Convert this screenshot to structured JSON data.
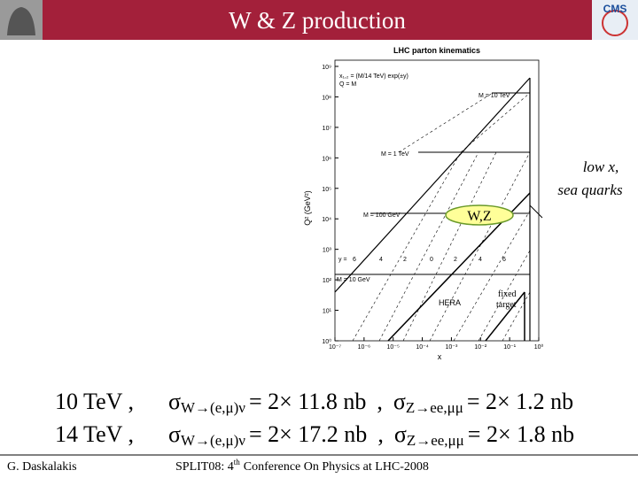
{
  "header": {
    "title": "W & Z production",
    "logo": "CMS"
  },
  "figure": {
    "title": "LHC parton kinematics",
    "x_label": "x",
    "y_label": "Q² (GeV²)",
    "x_ticks": [
      "10⁻⁷",
      "10⁻⁶",
      "10⁻⁵",
      "10⁻⁴",
      "10⁻³",
      "10⁻²",
      "10⁻¹",
      "10⁰"
    ],
    "y_ticks": [
      "10⁰",
      "10¹",
      "10²",
      "10³",
      "10⁴",
      "10⁵",
      "10⁶",
      "10⁷",
      "10⁸",
      "10⁹"
    ],
    "legend": [
      "x₁,₂ = (M/14 TeV) exp(±y)",
      "Q = M"
    ],
    "mass_labels": [
      "M = 10 TeV",
      "M = 1 TeV",
      "M = 100 GeV",
      "M = 10 GeV"
    ],
    "rapidity_labels": [
      "y =",
      "6",
      "4",
      "2",
      "0",
      "2",
      "4",
      "6"
    ],
    "regions": {
      "hera": "HERA",
      "fixed_target": [
        "fixed",
        "target"
      ]
    },
    "highlight": "W,Z"
  },
  "callout": [
    "low x,",
    "sea quarks"
  ],
  "cross_sections": [
    {
      "energy": "10 TeV ,",
      "w_sigma": "σ",
      "w_process": "W→(e,μ)ν",
      "w_value": "= 2× 11.8 nb",
      "separator": ",",
      "z_sigma": "σ",
      "z_process": "Z→ee,μμ",
      "z_value": "= 2× 1.2 nb"
    },
    {
      "energy": "14 TeV ,",
      "w_sigma": "σ",
      "w_process": "W→(e,μ)ν",
      "w_value": "= 2× 17.2 nb",
      "separator": ",",
      "z_sigma": "σ",
      "z_process": "Z→ee,μμ",
      "z_value": "= 2× 1.8 nb"
    }
  ],
  "footer": {
    "author": "G. Daskalakis",
    "conference": [
      "SPLIT08: 4",
      "th",
      "Conference On Physics at LHC-2008"
    ]
  }
}
